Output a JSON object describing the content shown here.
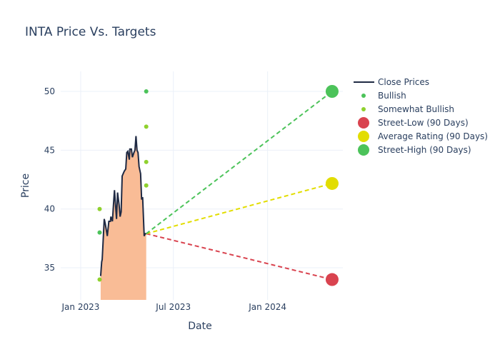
{
  "chart_data": {
    "type": "line",
    "title": "INTA Price Vs. Targets",
    "xlabel": "Date",
    "ylabel": "Price",
    "xlim": [
      "2022-11-23",
      "2024-05-27"
    ],
    "ylim": [
      32.27,
      51.7
    ],
    "x_ticks": [
      {
        "date": "2023-01-01",
        "label": "Jan 2023"
      },
      {
        "date": "2023-07-01",
        "label": "Jul 2023"
      },
      {
        "date": "2024-01-01",
        "label": "Jan 2024"
      }
    ],
    "y_ticks": [
      35,
      40,
      45,
      50
    ],
    "grid": true,
    "legend_position": "top-right",
    "colors": {
      "close": "#1f2a44",
      "fill": "#f9bc96",
      "bullish": "#4cc35a",
      "somewhat_bullish": "#8fd12e",
      "street_low": "#d9434f",
      "average": "#e2dd00",
      "street_high": "#4cc35a"
    },
    "series": [
      {
        "name": "Close Prices",
        "points": [
          [
            "2023-02-09",
            34.3
          ],
          [
            "2023-02-11",
            35.5
          ],
          [
            "2023-02-12",
            35.7
          ],
          [
            "2023-02-16",
            39.15
          ],
          [
            "2023-02-18",
            38.75
          ],
          [
            "2023-02-22",
            37.7
          ],
          [
            "2023-02-25",
            38.95
          ],
          [
            "2023-02-28",
            38.95
          ],
          [
            "2023-03-01",
            39.35
          ],
          [
            "2023-03-04",
            38.95
          ],
          [
            "2023-03-06",
            40.35
          ],
          [
            "2023-03-08",
            41.6
          ],
          [
            "2023-03-10",
            40.35
          ],
          [
            "2023-03-12",
            39.15
          ],
          [
            "2023-03-14",
            41.4
          ],
          [
            "2023-03-17",
            40.35
          ],
          [
            "2023-03-19",
            39.35
          ],
          [
            "2023-03-21",
            39.75
          ],
          [
            "2023-03-23",
            42.8
          ],
          [
            "2023-03-25",
            43.0
          ],
          [
            "2023-03-27",
            43.2
          ],
          [
            "2023-03-30",
            43.4
          ],
          [
            "2023-04-01",
            44.8
          ],
          [
            "2023-04-03",
            44.9
          ],
          [
            "2023-04-06",
            44.2
          ],
          [
            "2023-04-07",
            45.1
          ],
          [
            "2023-04-10",
            45.1
          ],
          [
            "2023-04-12",
            44.4
          ],
          [
            "2023-04-15",
            44.8
          ],
          [
            "2023-04-17",
            45.0
          ],
          [
            "2023-04-19",
            46.2
          ],
          [
            "2023-04-21",
            45.0
          ],
          [
            "2023-04-23",
            44.8
          ],
          [
            "2023-04-25",
            43.6
          ],
          [
            "2023-04-28",
            43.0
          ],
          [
            "2023-04-30",
            40.8
          ],
          [
            "2023-05-02",
            41.0
          ],
          [
            "2023-05-05",
            37.7
          ],
          [
            "2023-05-07",
            37.9
          ],
          [
            "2023-05-09",
            37.9
          ]
        ]
      },
      {
        "name": "Bullish",
        "points": [
          [
            "2023-02-07",
            38
          ],
          [
            "2023-05-09",
            50
          ]
        ]
      },
      {
        "name": "Somewhat Bullish",
        "points": [
          [
            "2023-02-07",
            40
          ],
          [
            "2023-02-07",
            34
          ],
          [
            "2023-05-09",
            47
          ],
          [
            "2023-05-09",
            44
          ],
          [
            "2023-05-09",
            42
          ]
        ]
      },
      {
        "name": "Street-Low (90 Days)",
        "points": [
          [
            "2023-05-09",
            37.9
          ],
          [
            "2024-05-06",
            34
          ]
        ]
      },
      {
        "name": "Average Rating (90 Days)",
        "points": [
          [
            "2023-05-09",
            37.9
          ],
          [
            "2024-05-06",
            42.17
          ]
        ]
      },
      {
        "name": "Street-High (90 Days)",
        "points": [
          [
            "2023-05-09",
            37.9
          ],
          [
            "2024-05-06",
            50
          ]
        ]
      }
    ]
  }
}
